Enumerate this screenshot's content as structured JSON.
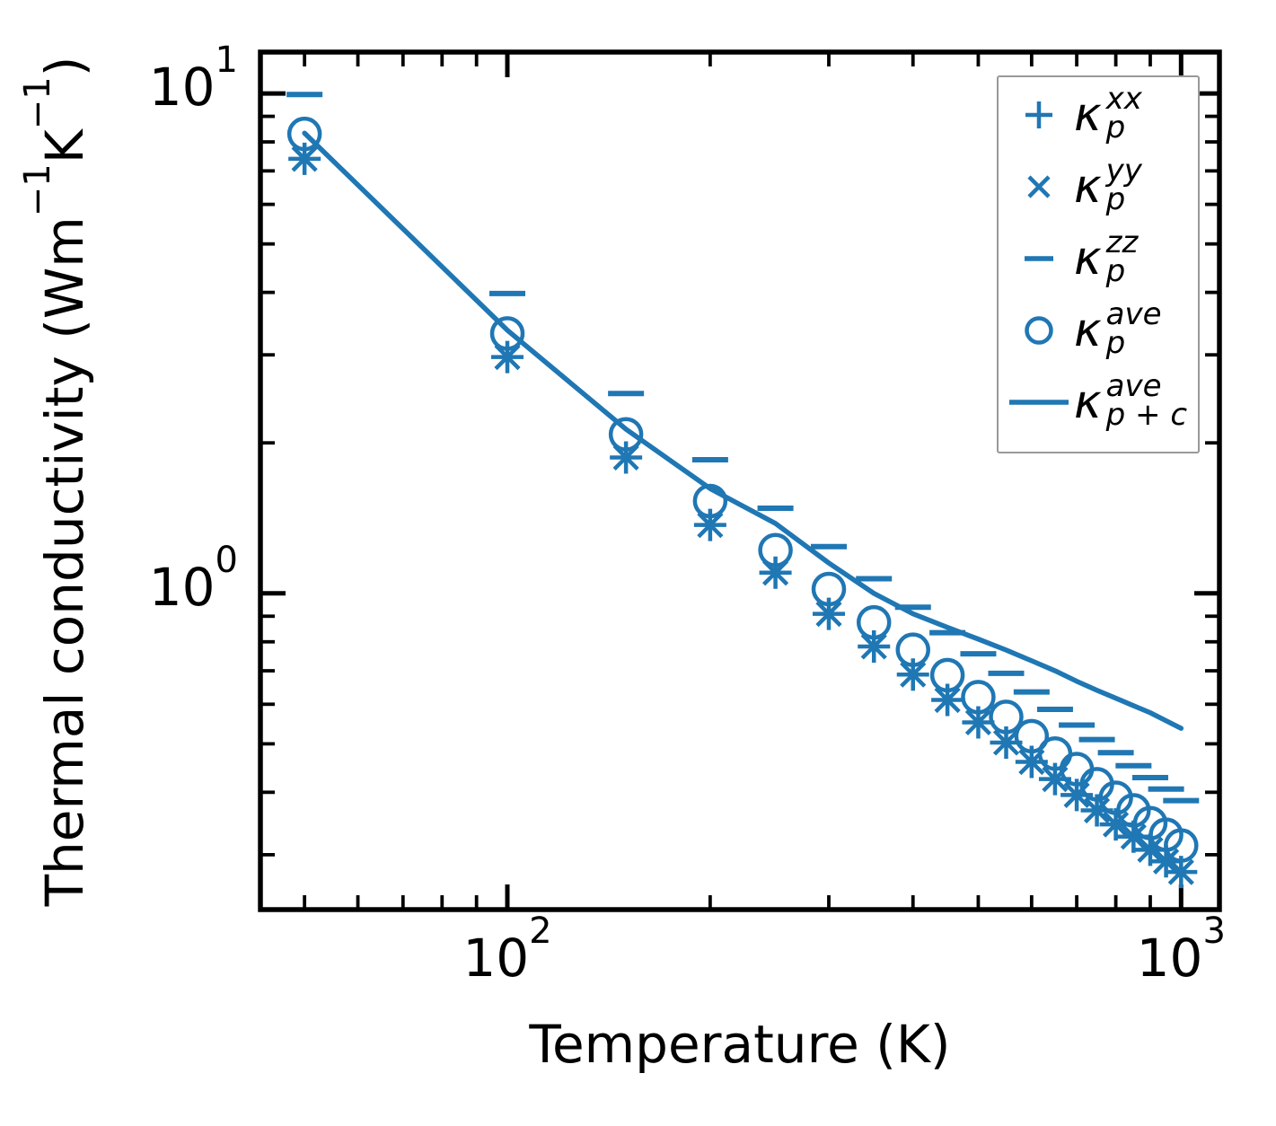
{
  "chart_data": {
    "type": "line+scatter",
    "title": "",
    "xlabel": "Temperature (K)",
    "ylabel_parts": {
      "p1": "Thermal conductivity (Wm",
      "s1": "−1",
      "p2": "K",
      "s2": "−1",
      "p3": ")"
    },
    "x_scale": "log",
    "y_scale": "log",
    "xlim": [
      43,
      1140
    ],
    "ylim": [
      0.233,
      12.1
    ],
    "grid": false,
    "x_ticks": [
      {
        "base": "10",
        "exp": "2",
        "value": 100
      },
      {
        "base": "10",
        "exp": "3",
        "value": 1000
      }
    ],
    "y_ticks": [
      {
        "base": "10",
        "exp": "1",
        "value": 10
      },
      {
        "base": "10",
        "exp": "0",
        "value": 1
      }
    ],
    "x": [
      50,
      100,
      150,
      200,
      250,
      300,
      350,
      400,
      450,
      500,
      550,
      600,
      650,
      700,
      750,
      800,
      850,
      900,
      950,
      1000
    ],
    "series": [
      {
        "name": "kappa_p_xx",
        "marker": "plus",
        "values": [
          7.4,
          2.97,
          1.87,
          1.37,
          1.1,
          0.91,
          0.783,
          0.688,
          0.612,
          0.552,
          0.503,
          0.46,
          0.425,
          0.395,
          0.368,
          0.345,
          0.326,
          0.307,
          0.291,
          0.277
        ]
      },
      {
        "name": "kappa_p_yy",
        "marker": "cross",
        "values": [
          7.4,
          2.97,
          1.87,
          1.37,
          1.1,
          0.91,
          0.783,
          0.688,
          0.612,
          0.552,
          0.503,
          0.46,
          0.425,
          0.395,
          0.368,
          0.345,
          0.326,
          0.307,
          0.291,
          0.277
        ]
      },
      {
        "name": "kappa_p_zz",
        "marker": "hline",
        "values": [
          9.95,
          3.98,
          2.51,
          1.85,
          1.48,
          1.24,
          1.07,
          0.938,
          0.834,
          0.757,
          0.692,
          0.635,
          0.586,
          0.545,
          0.51,
          0.48,
          0.452,
          0.428,
          0.406,
          0.385
        ]
      },
      {
        "name": "kappa_p_ave",
        "marker": "circle",
        "values": [
          8.3,
          3.31,
          2.08,
          1.53,
          1.22,
          1.02,
          0.875,
          0.771,
          0.686,
          0.62,
          0.566,
          0.518,
          0.478,
          0.445,
          0.415,
          0.39,
          0.368,
          0.347,
          0.329,
          0.313
        ]
      },
      {
        "name": "kappa_p_plus_c_ave",
        "marker": "solidline",
        "values": [
          8.33,
          3.36,
          2.13,
          1.62,
          1.38,
          1.15,
          1.0,
          0.91,
          0.855,
          0.81,
          0.77,
          0.733,
          0.7,
          0.667,
          0.64,
          0.617,
          0.596,
          0.577,
          0.556,
          0.537
        ]
      }
    ],
    "legend": {
      "position": "upper right",
      "items": [
        {
          "marker": "plus",
          "base": "κ",
          "sup": "xx",
          "sub": "p"
        },
        {
          "marker": "cross",
          "base": "κ",
          "sup": "yy",
          "sub": "p"
        },
        {
          "marker": "hline",
          "base": "κ",
          "sup": "zz",
          "sub": "p"
        },
        {
          "marker": "circle",
          "base": "κ",
          "sup": "ave",
          "sub": "p"
        },
        {
          "marker": "solidline",
          "base": "κ",
          "sup": "ave",
          "sub": "p + c"
        }
      ]
    },
    "colors": {
      "series": "#1f77b4",
      "axes": "#000000",
      "legend_border": "#999999",
      "background": "#ffffff"
    }
  }
}
